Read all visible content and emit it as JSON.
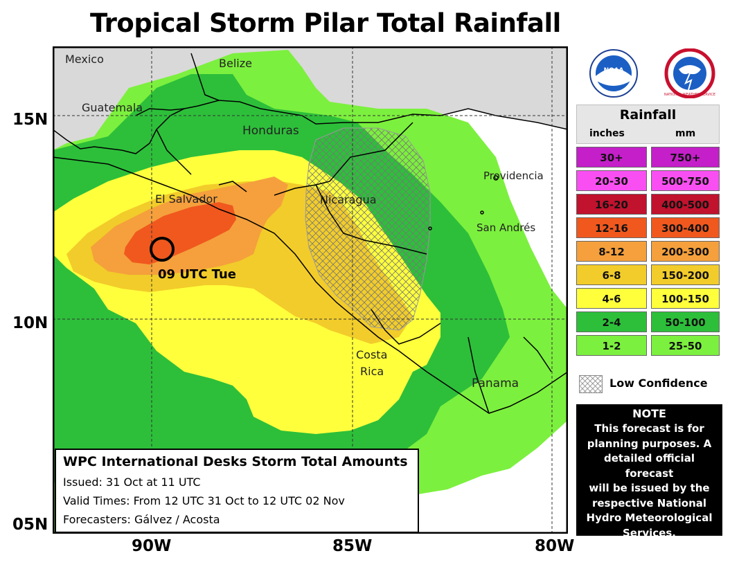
{
  "title": "Tropical Storm Pilar Total Rainfall",
  "map": {
    "lat_labels": [
      "15N",
      "10N",
      "05N"
    ],
    "lon_labels": [
      "90W",
      "85W",
      "80W"
    ],
    "places": {
      "mexico": "Mexico",
      "belize": "Belize",
      "guatemala": "Guatemala",
      "honduras": "Honduras",
      "el_salvador": "El Salvador",
      "nicaragua": "Nicaragua",
      "providencia": "Providencia",
      "san_andres": "San Andrés",
      "costa_rica_1": "Costa",
      "costa_rica_2": "Rica",
      "panama": "Panama"
    },
    "storm_label": "09 UTC Tue",
    "colors": {
      "land": "#d9d9d9",
      "ocean": "#ffffff",
      "c1_2": "#7cf03e",
      "c2_4": "#2dbf3a",
      "c4_6": "#ffff3c",
      "c6_8": "#f2cc2a",
      "c8_12": "#f5a03c",
      "c12_16": "#f0581e"
    }
  },
  "info": {
    "heading": "WPC International Desks Storm Total Amounts",
    "issued": "Issued:  31 Oct at 11 UTC",
    "valid": "Valid Times:  From 12 UTC 31 Oct  to  12 UTC 02 Nov",
    "forecasters": "Forecasters: Gálvez / Acosta"
  },
  "logos": {
    "noaa": "NOAA",
    "nws": "NATIONAL WEATHER SERVICE"
  },
  "legend": {
    "title": "Rainfall",
    "unit_inches": "inches",
    "unit_mm": "mm",
    "rows": [
      {
        "inches": "30+",
        "mm": "750+",
        "color": "#c41fc9"
      },
      {
        "inches": "20-30",
        "mm": "500-750",
        "color": "#f94ff2"
      },
      {
        "inches": "16-20",
        "mm": "400-500",
        "color": "#c1122e"
      },
      {
        "inches": "12-16",
        "mm": "300-400",
        "color": "#f0581e"
      },
      {
        "inches": "8-12",
        "mm": "200-300",
        "color": "#f5a03c"
      },
      {
        "inches": "6-8",
        "mm": "150-200",
        "color": "#f2cc2a"
      },
      {
        "inches": "4-6",
        "mm": "100-150",
        "color": "#ffff3c"
      },
      {
        "inches": "2-4",
        "mm": "50-100",
        "color": "#2dbf3a"
      },
      {
        "inches": "1-2",
        "mm": "25-50",
        "color": "#7cf03e"
      }
    ],
    "low_confidence": "Low Confidence"
  },
  "note": {
    "heading": "NOTE",
    "lines": [
      "This forecast is for",
      "planning purposes. A",
      "detailed official forecast",
      "will be issued by the",
      "respective National",
      "Hydro Meteorological",
      "Services."
    ]
  }
}
